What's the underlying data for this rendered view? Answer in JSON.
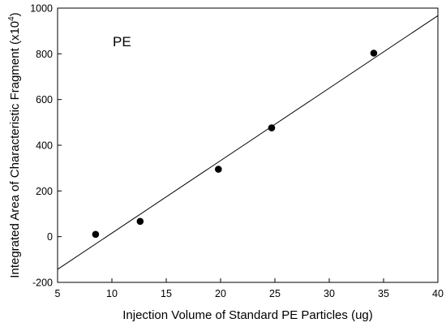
{
  "chart_data": {
    "type": "scatter",
    "annotation": "PE",
    "xlabel": "Injection Volume of Standard PE Particles (ug)",
    "ylabel_main": "Integrated Area of Characteristic Fragment (x10",
    "ylabel_sup": "4",
    "ylabel_end": ")",
    "xlim": [
      5,
      40
    ],
    "ylim": [
      -200,
      1000
    ],
    "x_ticks": [
      5,
      10,
      15,
      20,
      25,
      30,
      35,
      40
    ],
    "y_ticks": [
      -200,
      0,
      200,
      400,
      600,
      800,
      1000
    ],
    "grid": false,
    "legend": "none",
    "points": [
      {
        "x": 8.5,
        "y": 10
      },
      {
        "x": 12.6,
        "y": 67
      },
      {
        "x": 19.8,
        "y": 295
      },
      {
        "x": 24.7,
        "y": 476
      },
      {
        "x": 34.1,
        "y": 803
      }
    ],
    "fit_line": {
      "x": [
        5,
        40
      ],
      "y": [
        -143,
        967
      ]
    },
    "colors": {
      "marker": "#000000",
      "line": "#000000",
      "axis": "#000000"
    }
  }
}
